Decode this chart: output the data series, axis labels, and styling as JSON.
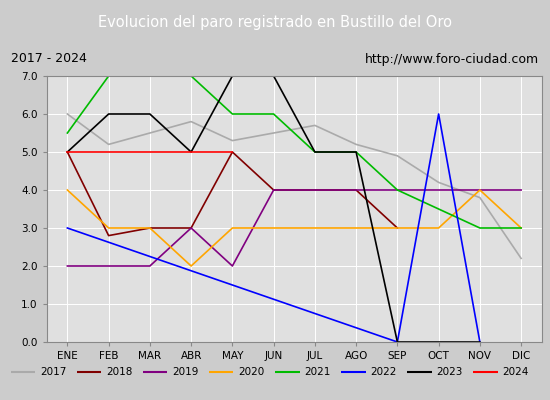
{
  "title": "Evolucion del paro registrado en Bustillo del Oro",
  "subtitle_left": "2017 - 2024",
  "subtitle_right": "http://www.foro-ciudad.com",
  "months": [
    "ENE",
    "FEB",
    "MAR",
    "ABR",
    "MAY",
    "JUN",
    "JUL",
    "AGO",
    "SEP",
    "OCT",
    "NOV",
    "DIC"
  ],
  "ylim": [
    0.0,
    7.0
  ],
  "yticks": [
    0.0,
    1.0,
    2.0,
    3.0,
    4.0,
    5.0,
    6.0,
    7.0
  ],
  "series": {
    "2017": {
      "color": "#aaaaaa",
      "points": [
        [
          0,
          6.0
        ],
        [
          1,
          5.2
        ],
        [
          2,
          5.5
        ],
        [
          3,
          5.8
        ],
        [
          4,
          5.3
        ],
        [
          5,
          5.5
        ],
        [
          6,
          5.7
        ],
        [
          7,
          5.2
        ],
        [
          8,
          4.9
        ],
        [
          9,
          4.2
        ],
        [
          10,
          3.8
        ],
        [
          11,
          2.2
        ]
      ]
    },
    "2018": {
      "color": "#800000",
      "points": [
        [
          0,
          5.0
        ],
        [
          1,
          2.8
        ],
        [
          2,
          3.0
        ],
        [
          3,
          3.0
        ],
        [
          4,
          5.0
        ],
        [
          5,
          4.0
        ],
        [
          6,
          4.0
        ],
        [
          7,
          4.0
        ],
        [
          8,
          3.0
        ]
      ]
    },
    "2019": {
      "color": "#800080",
      "points": [
        [
          0,
          2.0
        ],
        [
          1,
          2.0
        ],
        [
          2,
          2.0
        ],
        [
          3,
          3.0
        ],
        [
          4,
          2.0
        ],
        [
          5,
          4.0
        ],
        [
          6,
          4.0
        ],
        [
          7,
          4.0
        ],
        [
          8,
          4.0
        ],
        [
          9,
          4.0
        ],
        [
          10,
          4.0
        ],
        [
          11,
          4.0
        ]
      ]
    },
    "2020": {
      "color": "#ffa500",
      "points": [
        [
          0,
          4.0
        ],
        [
          1,
          3.0
        ],
        [
          2,
          3.0
        ],
        [
          3,
          2.0
        ],
        [
          4,
          3.0
        ],
        [
          5,
          3.0
        ],
        [
          6,
          3.0
        ],
        [
          7,
          3.0
        ],
        [
          8,
          3.0
        ],
        [
          9,
          3.0
        ],
        [
          10,
          4.0
        ],
        [
          11,
          3.0
        ]
      ]
    },
    "2021": {
      "color": "#00bb00",
      "points": [
        [
          0,
          5.5
        ],
        [
          1,
          7.0
        ],
        [
          2,
          7.0
        ],
        [
          3,
          7.0
        ],
        [
          4,
          6.0
        ],
        [
          5,
          6.0
        ],
        [
          6,
          5.0
        ],
        [
          7,
          5.0
        ],
        [
          8,
          4.0
        ],
        [
          9,
          3.5
        ],
        [
          10,
          3.0
        ],
        [
          11,
          3.0
        ]
      ]
    },
    "2022": {
      "color": "#0000ff",
      "points": [
        [
          0,
          3.0
        ],
        [
          8,
          0.0
        ],
        [
          9,
          6.0
        ],
        [
          10,
          0.0
        ]
      ]
    },
    "2023": {
      "color": "#000000",
      "points": [
        [
          0,
          5.0
        ],
        [
          1,
          6.0
        ],
        [
          2,
          6.0
        ],
        [
          3,
          5.0
        ],
        [
          4,
          7.0
        ],
        [
          5,
          7.0
        ],
        [
          6,
          5.0
        ],
        [
          7,
          5.0
        ],
        [
          8,
          0.0
        ],
        [
          10,
          0.0
        ]
      ]
    },
    "2024": {
      "color": "#ff0000",
      "points": [
        [
          0,
          5.0
        ],
        [
          4,
          5.0
        ]
      ]
    }
  },
  "background_color": "#cccccc",
  "plot_bg_color": "#e0e0e0",
  "title_bg_color": "#4f81bd",
  "title_color": "#ffffff",
  "grid_color": "#ffffff",
  "subtitle_bg_color": "#d4d4d4",
  "legend_bg": "#d4d4d4",
  "legend_border_color": "#888888"
}
